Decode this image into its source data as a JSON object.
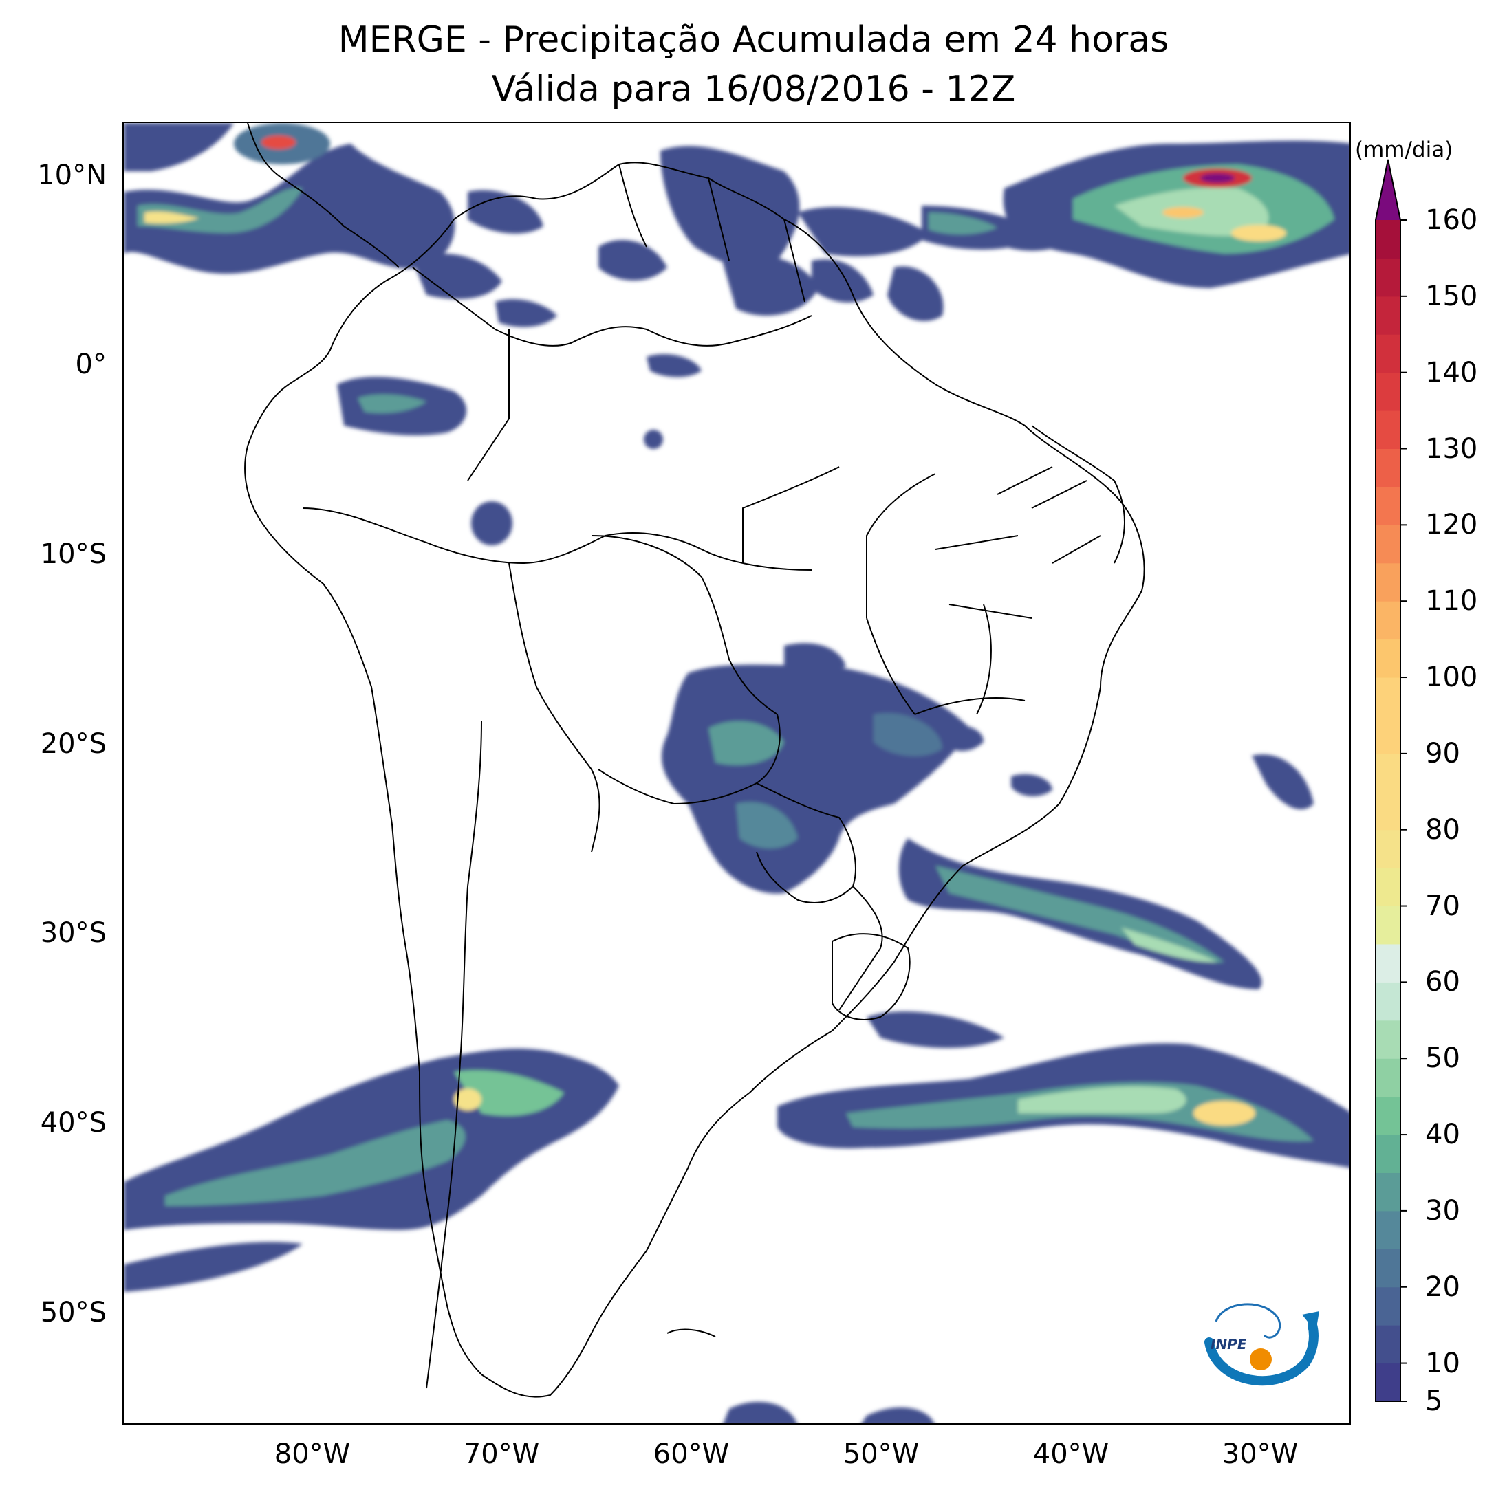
{
  "title_line1": "MERGE - Precipitação Acumulada em 24 horas",
  "title_line2": "Válida para 16/08/2016 - 12Z",
  "lat_ticks": [
    "10°N",
    "0°",
    "10°S",
    "20°S",
    "30°S",
    "40°S",
    "50°S"
  ],
  "lon_ticks": [
    "80°W",
    "70°W",
    "60°W",
    "50°W",
    "40°W",
    "30°W"
  ],
  "colorbar": {
    "unit": "(mm/dia)",
    "ticks": [
      "5",
      "10",
      "20",
      "30",
      "40",
      "50",
      "60",
      "70",
      "80",
      "90",
      "100",
      "110",
      "120",
      "130",
      "140",
      "150",
      "160"
    ],
    "min": 5,
    "max": 160,
    "extend": "max",
    "over_color": "#7a0a7d",
    "levels_colors": [
      [
        5,
        "#3f3e8a"
      ],
      [
        10,
        "#434f8d"
      ],
      [
        15,
        "#4a6494"
      ],
      [
        20,
        "#4f7697"
      ],
      [
        25,
        "#55889a"
      ],
      [
        30,
        "#5b9c97"
      ],
      [
        35,
        "#62b194"
      ],
      [
        40,
        "#74c396"
      ],
      [
        45,
        "#8fd0a3"
      ],
      [
        50,
        "#a8dcb4"
      ],
      [
        55,
        "#c5e7d4"
      ],
      [
        60,
        "#dceee6"
      ],
      [
        65,
        "#e6ee9c"
      ],
      [
        70,
        "#eee98f"
      ],
      [
        75,
        "#f5e28a"
      ],
      [
        80,
        "#fadb83"
      ],
      [
        90,
        "#fdd27a"
      ],
      [
        100,
        "#fcc66d"
      ],
      [
        105,
        "#fbb565"
      ],
      [
        110,
        "#f9a15c"
      ],
      [
        115,
        "#f68b55"
      ],
      [
        120,
        "#f3764f"
      ],
      [
        125,
        "#ed6048"
      ],
      [
        130,
        "#e54b42"
      ],
      [
        135,
        "#dc3c3e"
      ],
      [
        140,
        "#d1303c"
      ],
      [
        145,
        "#c4253b"
      ],
      [
        150,
        "#b51a3a"
      ],
      [
        155,
        "#a5103a"
      ]
    ]
  },
  "logo_text": "INPE",
  "colors": {
    "land_outline": "#000000",
    "background": "#ffffff"
  }
}
